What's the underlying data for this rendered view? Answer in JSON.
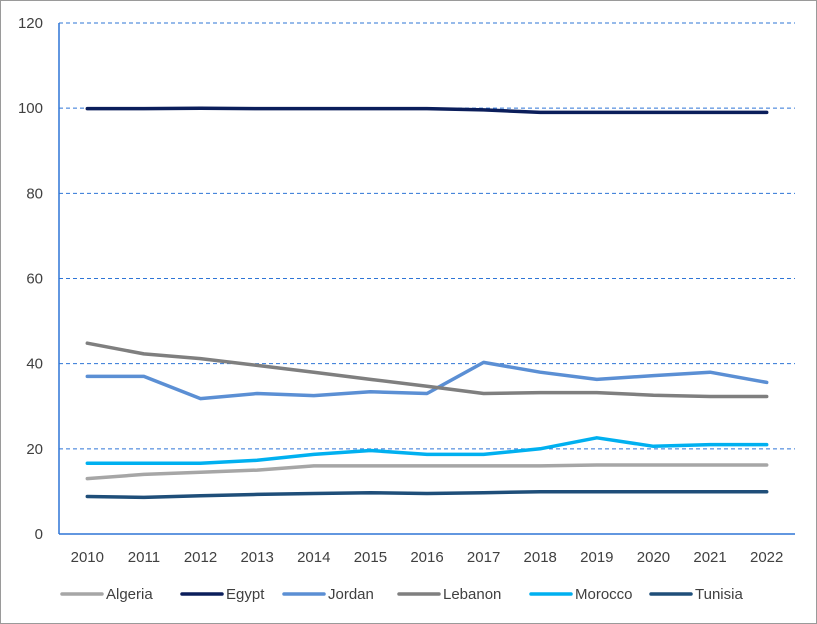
{
  "chart_data": {
    "type": "line",
    "title": "",
    "xlabel": "",
    "ylabel": "",
    "ylim": [
      0,
      120
    ],
    "yticks": [
      0,
      20,
      40,
      60,
      80,
      100,
      120
    ],
    "grid": "horizontal dashed",
    "legend_position": "bottom",
    "categories": [
      "2010",
      "2011",
      "2012",
      "2013",
      "2014",
      "2015",
      "2016",
      "2017",
      "2018",
      "2019",
      "2020",
      "2021",
      "2022"
    ],
    "series": [
      {
        "name": "Algeria",
        "color": "#a6a6a6",
        "values": [
          13.0,
          14.0,
          14.5,
          15.0,
          16.0,
          16.0,
          16.0,
          16.0,
          16.0,
          16.2,
          16.2,
          16.2,
          16.2
        ]
      },
      {
        "name": "Egypt",
        "color": "#0b1e5b",
        "values": [
          99.9,
          99.9,
          100.0,
          99.9,
          99.9,
          99.9,
          99.9,
          99.6,
          99.0,
          99.0,
          99.0,
          99.0,
          99.0
        ]
      },
      {
        "name": "Jordan",
        "color": "#5b8fd4",
        "values": [
          37.0,
          37.0,
          31.8,
          33.0,
          32.5,
          33.4,
          33.0,
          40.3,
          38.0,
          36.3,
          37.2,
          38.0,
          35.6
        ]
      },
      {
        "name": "Lebanon",
        "color": "#7f7f7f",
        "values": [
          44.8,
          42.3,
          41.2,
          39.6,
          38.0,
          36.3,
          34.7,
          33.0,
          33.2,
          33.2,
          32.6,
          32.3,
          32.3
        ]
      },
      {
        "name": "Morocco",
        "color": "#00b0f0",
        "values": [
          16.6,
          16.6,
          16.6,
          17.3,
          18.7,
          19.6,
          18.7,
          18.7,
          20.0,
          22.6,
          20.6,
          21.0,
          21.0
        ]
      },
      {
        "name": "Tunisia",
        "color": "#1f4e79",
        "values": [
          8.8,
          8.6,
          9.0,
          9.3,
          9.5,
          9.7,
          9.5,
          9.7,
          9.9,
          9.9,
          9.9,
          9.9,
          9.9
        ]
      }
    ]
  }
}
